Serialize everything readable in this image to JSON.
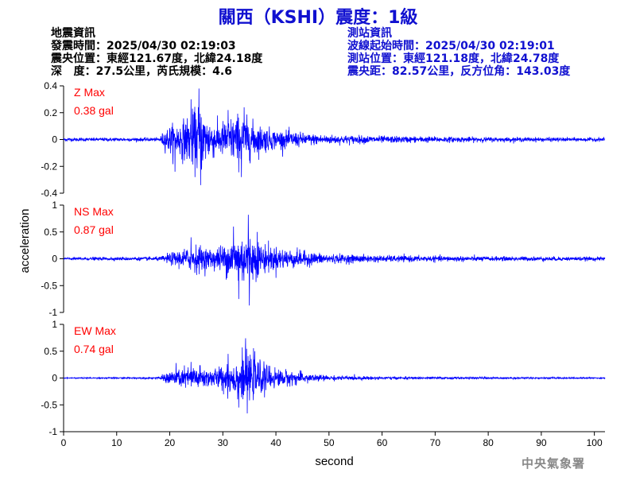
{
  "title": "關西（KSHI）震度：1級",
  "event_info": {
    "header": "地震資訊",
    "origin_time": "發震時間：2025/04/30 02:19:03",
    "epicenter": "震央位置：東經121.67度，北緯24.18度",
    "depth_magnitude": "深   度：27.5公里，芮氏規模：4.6"
  },
  "station_info": {
    "header": "測站資訊",
    "wave_start": "波線起始時間：2025/04/30 02:19:01",
    "location": "測站位置：東經121.18度，北緯24.78度",
    "distance": "震央距：82.57公里，反方位角：143.03度"
  },
  "credit": "中央氣象署",
  "colors": {
    "title": "#1010d0",
    "trace": "#0000ff",
    "max_label": "#ff0000",
    "axis": "#000000"
  },
  "chart_data": {
    "type": "line",
    "xlabel": "second",
    "ylabel": "acceleration",
    "xlim": [
      0,
      102
    ],
    "xticks": [
      0,
      10,
      20,
      30,
      40,
      50,
      60,
      70,
      80,
      90,
      100
    ],
    "panels": [
      {
        "name": "Z",
        "max_title": "Z Max",
        "max_value": "0.38 gal",
        "ylim": [
          -0.4,
          0.4
        ],
        "yticks": [
          -0.4,
          -0.2,
          0,
          0.2,
          0.4
        ],
        "ytick_labels": [
          "-0.4",
          "-0.2",
          "0",
          "0.2",
          "0.4"
        ],
        "peak_time": 25.5,
        "envelope": [
          [
            0,
            0.015
          ],
          [
            18,
            0.015
          ],
          [
            19,
            0.08
          ],
          [
            20,
            0.12
          ],
          [
            22,
            0.15
          ],
          [
            24,
            0.22
          ],
          [
            25.5,
            0.3
          ],
          [
            27,
            0.2
          ],
          [
            29,
            0.13
          ],
          [
            31,
            0.18
          ],
          [
            33,
            0.22
          ],
          [
            35,
            0.17
          ],
          [
            37,
            0.12
          ],
          [
            40,
            0.08
          ],
          [
            43,
            0.07
          ],
          [
            46,
            0.05
          ],
          [
            50,
            0.04
          ],
          [
            60,
            0.03
          ],
          [
            80,
            0.02
          ],
          [
            102,
            0.015
          ]
        ],
        "spikes": [
          [
            21,
            -0.24
          ],
          [
            25.5,
            0.38
          ],
          [
            25.8,
            -0.34
          ],
          [
            24,
            0.3
          ],
          [
            31,
            0.22
          ],
          [
            33.5,
            -0.28
          ],
          [
            34,
            0.24
          ]
        ]
      },
      {
        "name": "NS",
        "max_title": "NS Max",
        "max_value": "0.87 gal",
        "ylim": [
          -1,
          1
        ],
        "yticks": [
          -1,
          -0.5,
          0,
          0.5,
          1
        ],
        "ytick_labels": [
          "-1",
          "-0.5",
          "0",
          "0.5",
          "1"
        ],
        "peak_time": 34.8,
        "envelope": [
          [
            0,
            0.03
          ],
          [
            18,
            0.04
          ],
          [
            20,
            0.12
          ],
          [
            23,
            0.22
          ],
          [
            25,
            0.3
          ],
          [
            27,
            0.22
          ],
          [
            29,
            0.24
          ],
          [
            31,
            0.38
          ],
          [
            33,
            0.52
          ],
          [
            34.5,
            0.6
          ],
          [
            36,
            0.42
          ],
          [
            38,
            0.3
          ],
          [
            40,
            0.25
          ],
          [
            43,
            0.2
          ],
          [
            46,
            0.15
          ],
          [
            50,
            0.1
          ],
          [
            60,
            0.07
          ],
          [
            80,
            0.05
          ],
          [
            102,
            0.04
          ]
        ],
        "spikes": [
          [
            24,
            0.4
          ],
          [
            32,
            0.6
          ],
          [
            33,
            -0.75
          ],
          [
            34.8,
            0.82
          ],
          [
            35,
            -0.87
          ],
          [
            36.5,
            0.5
          ]
        ]
      },
      {
        "name": "EW",
        "max_title": "EW Max",
        "max_value": "0.74 gal",
        "ylim": [
          -1,
          1
        ],
        "yticks": [
          -1,
          -0.5,
          0,
          0.5,
          1
        ],
        "ytick_labels": [
          "-1",
          "-0.5",
          "0",
          "0.5",
          "1"
        ],
        "peak_time": 34.3,
        "envelope": [
          [
            0,
            0.01
          ],
          [
            18,
            0.02
          ],
          [
            19,
            0.1
          ],
          [
            21,
            0.2
          ],
          [
            23,
            0.22
          ],
          [
            25,
            0.28
          ],
          [
            27,
            0.2
          ],
          [
            29,
            0.22
          ],
          [
            31,
            0.34
          ],
          [
            33,
            0.42
          ],
          [
            34.5,
            0.5
          ],
          [
            36,
            0.4
          ],
          [
            38,
            0.3
          ],
          [
            40,
            0.2
          ],
          [
            43,
            0.15
          ],
          [
            46,
            0.1
          ],
          [
            50,
            0.05
          ],
          [
            60,
            0.03
          ],
          [
            80,
            0.02
          ],
          [
            102,
            0.015
          ]
        ],
        "spikes": [
          [
            24,
            0.3
          ],
          [
            31,
            0.45
          ],
          [
            33,
            -0.55
          ],
          [
            34.3,
            0.74
          ],
          [
            34.6,
            -0.66
          ],
          [
            36,
            0.5
          ]
        ]
      }
    ]
  }
}
